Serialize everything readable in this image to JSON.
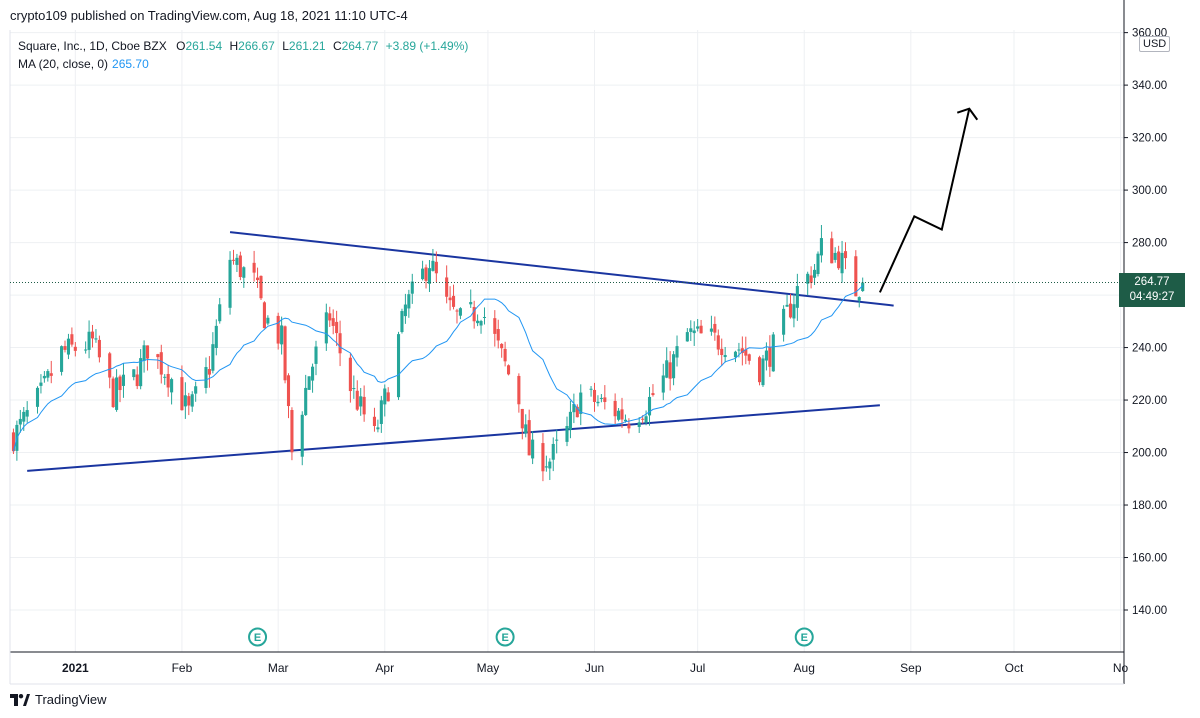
{
  "header": {
    "published": "crypto109 published on TradingView.com, Aug 18, 2021 11:10 UTC-4"
  },
  "legend": {
    "symbol": "Square, Inc., 1D, Cboe BZX",
    "o_label": "O",
    "o_value": "261.54",
    "h_label": "H",
    "h_value": "266.67",
    "l_label": "L",
    "l_value": "261.21",
    "c_label": "C",
    "c_value": "264.77",
    "change": "+3.89 (+1.49%)",
    "ma_label": "MA (20, close, 0)",
    "ma_value": "265.70"
  },
  "price_axis": {
    "currency": "USD",
    "last_price": "264.77",
    "countdown": "04:49:27"
  },
  "footer": {
    "brand": "TradingView"
  },
  "colors": {
    "up": "#26a69a",
    "down": "#ef5350",
    "ma": "#2196f3",
    "trendline": "#1a35a0",
    "arrow": "#000000",
    "grid": "#eef0f3",
    "price_tag": "#1e5c47"
  },
  "chart_data": {
    "type": "candlestick",
    "ylim": [
      124,
      361
    ],
    "yticks": [
      140,
      160,
      180,
      200,
      220,
      240,
      260,
      280,
      300,
      320,
      340,
      360
    ],
    "ytick_labels": [
      "140.00",
      "160.00",
      "180.00",
      "200.00",
      "220.00",
      "240.00",
      "260.00",
      "280.00",
      "300.00",
      "320.00",
      "340.00",
      "360.00"
    ],
    "xlim": [
      "2020-12-13",
      "2021-11-02"
    ],
    "xticks": [
      "2021-01-01",
      "2021-02-01",
      "2021-03-01",
      "2021-04-01",
      "2021-05-01",
      "2021-06-01",
      "2021-07-01",
      "2021-08-01",
      "2021-09-01",
      "2021-10-01",
      "2021-11-01"
    ],
    "xtick_labels": [
      "2021",
      "Feb",
      "Mar",
      "Apr",
      "May",
      "Jun",
      "Jul",
      "Aug",
      "Sep",
      "Oct",
      "No"
    ],
    "last_price": 264.77,
    "earnings_markers": {
      "label": "E",
      "dates": [
        "2021-02-23",
        "2021-05-06",
        "2021-08-01"
      ]
    },
    "anchors": [
      [
        "2020-12-14",
        206
      ],
      [
        "2020-12-22",
        222
      ],
      [
        "2020-12-28",
        238
      ],
      [
        "2021-01-06",
        242
      ],
      [
        "2021-01-12",
        222
      ],
      [
        "2021-01-19",
        230
      ],
      [
        "2021-01-22",
        240
      ],
      [
        "2021-01-29",
        228
      ],
      [
        "2021-02-03",
        215
      ],
      [
        "2021-02-09",
        233
      ],
      [
        "2021-02-15",
        274
      ],
      [
        "2021-02-22",
        265
      ],
      [
        "2021-02-25",
        252
      ],
      [
        "2021-03-02",
        243
      ],
      [
        "2021-03-05",
        200
      ],
      [
        "2021-03-10",
        230
      ],
      [
        "2021-03-16",
        252
      ],
      [
        "2021-03-22",
        225
      ],
      [
        "2021-03-29",
        206
      ],
      [
        "2021-04-02",
        225
      ],
      [
        "2021-04-07",
        255
      ],
      [
        "2021-04-14",
        273
      ],
      [
        "2021-04-19",
        256
      ],
      [
        "2021-04-23",
        250
      ],
      [
        "2021-04-29",
        255
      ],
      [
        "2021-05-03",
        243
      ],
      [
        "2021-05-10",
        220
      ],
      [
        "2021-05-13",
        200
      ],
      [
        "2021-05-19",
        197
      ],
      [
        "2021-05-24",
        208
      ],
      [
        "2021-05-28",
        222
      ],
      [
        "2021-06-04",
        218
      ],
      [
        "2021-06-11",
        213
      ],
      [
        "2021-06-16",
        218
      ],
      [
        "2021-06-22",
        230
      ],
      [
        "2021-06-28",
        245
      ],
      [
        "2021-07-06",
        243
      ],
      [
        "2021-07-13",
        240
      ],
      [
        "2021-07-19",
        232
      ],
      [
        "2021-07-23",
        240
      ],
      [
        "2021-07-30",
        262
      ],
      [
        "2021-08-04",
        270
      ],
      [
        "2021-08-06",
        278
      ],
      [
        "2021-08-11",
        275
      ],
      [
        "2021-08-16",
        262
      ],
      [
        "2021-08-18",
        264.77
      ]
    ],
    "trendlines": [
      {
        "start": [
          "2021-02-15",
          284
        ],
        "end": [
          "2021-08-27",
          256
        ]
      },
      {
        "start": [
          "2020-12-18",
          193
        ],
        "end": [
          "2021-08-23",
          218
        ]
      }
    ],
    "projection_arrow": [
      [
        "2021-08-23",
        261
      ],
      [
        "2021-09-02",
        290
      ],
      [
        "2021-09-10",
        285
      ],
      [
        "2021-09-18",
        331
      ]
    ]
  }
}
